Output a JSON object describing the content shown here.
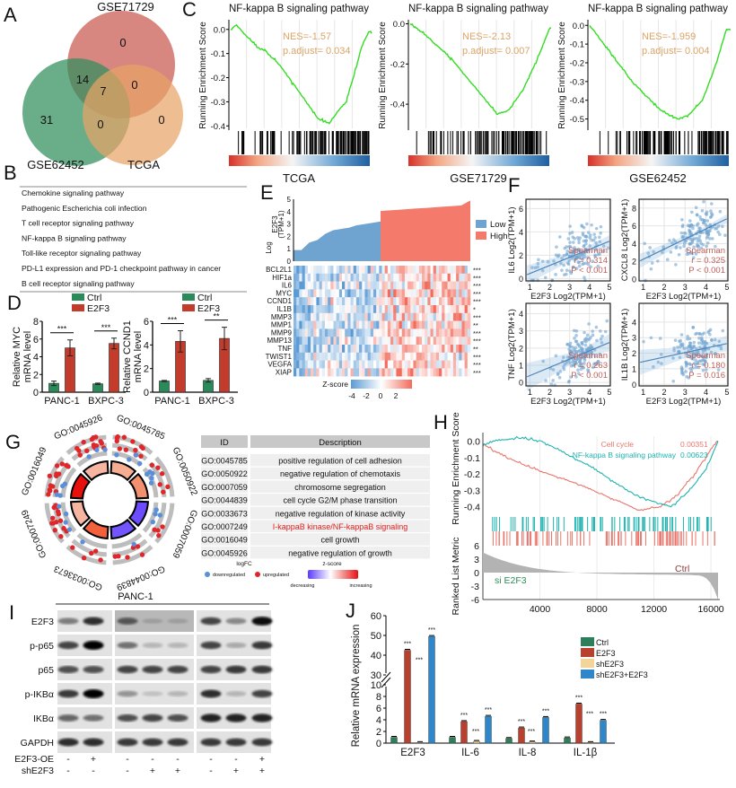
{
  "panel_labels": [
    "A",
    "B",
    "C",
    "D",
    "E",
    "F",
    "G",
    "H",
    "I",
    "J"
  ],
  "chart_data": [
    {
      "panel": "A",
      "type": "venn",
      "sets": [
        {
          "name": "GSE71729",
          "color": "#c9574f"
        },
        {
          "name": "GSE62452",
          "color": "#2f8f5b"
        },
        {
          "name": "TCGA",
          "color": "#e8a466"
        }
      ],
      "regions": [
        0,
        14,
        7,
        0,
        31,
        0,
        0
      ]
    },
    {
      "panel": "B",
      "type": "table",
      "rows": [
        "Chemokine signaling pathway",
        "Pathogenic Escherichia coli infection",
        "T cell receptor signaling pathway",
        "NF-kappa B signaling pathway",
        "Toll-like receptor signaling pathway",
        "PD-L1 expression and PD-1 checkpoint pathway in cancer",
        "B cell receptor signaling pathway"
      ]
    },
    {
      "panel": "C",
      "type": "line",
      "ylabel": "Running Enrichment Score",
      "line_color": "#33dd22",
      "plots": [
        {
          "title": "NF-kappa B signaling pathway",
          "dataset": "TCGA",
          "nes": "NES=-1.57",
          "padj": "p.adjust= 0.034",
          "ylim": [
            -0.41,
            0.04
          ],
          "yticks": [
            "0.0",
            "-0.1",
            "-0.2",
            "-0.3",
            "-0.4"
          ],
          "ytick_values": [
            0,
            -0.1,
            -0.2,
            -0.3,
            -0.4
          ],
          "es": [
            [
              0,
              0
            ],
            [
              0.04,
              0.02
            ],
            [
              0.1,
              -0.02
            ],
            [
              0.2,
              -0.08
            ],
            [
              0.25,
              -0.09
            ],
            [
              0.35,
              -0.15
            ],
            [
              0.5,
              -0.27
            ],
            [
              0.62,
              -0.37
            ],
            [
              0.7,
              -0.39
            ],
            [
              0.76,
              -0.34
            ],
            [
              0.82,
              -0.3
            ],
            [
              0.88,
              -0.18
            ],
            [
              0.93,
              -0.07
            ],
            [
              0.98,
              -0.01
            ]
          ]
        },
        {
          "title": "NF-kappa B signaling pathway",
          "dataset": "GSE71729",
          "nes": "NES=-2.13",
          "padj": "p.adjust= 0.007",
          "ylim": [
            -0.52,
            0.02
          ],
          "yticks": [
            "0.0",
            "-0.2",
            "-0.4"
          ],
          "ytick_values": [
            0,
            -0.2,
            -0.4
          ],
          "es": [
            [
              0,
              0
            ],
            [
              0.1,
              -0.05
            ],
            [
              0.3,
              -0.18
            ],
            [
              0.5,
              -0.35
            ],
            [
              0.62,
              -0.45
            ],
            [
              0.7,
              -0.43
            ],
            [
              0.8,
              -0.33
            ],
            [
              0.9,
              -0.18
            ],
            [
              0.99,
              -0.02
            ]
          ]
        },
        {
          "title": "NF-kappa B signaling pathway",
          "dataset": "GSE62452",
          "nes": "NES=-1.959",
          "padj": "p.adjust= 0.004",
          "ylim": [
            -0.55,
            0.03
          ],
          "yticks": [
            "0.0",
            "-0.1",
            "-0.2",
            "-0.3",
            "-0.4",
            "-0.5"
          ],
          "ytick_values": [
            0,
            -0.1,
            -0.2,
            -0.3,
            -0.4,
            -0.5
          ],
          "es": [
            [
              0,
              0
            ],
            [
              0.1,
              -0.1
            ],
            [
              0.3,
              -0.3
            ],
            [
              0.5,
              -0.45
            ],
            [
              0.62,
              -0.5
            ],
            [
              0.7,
              -0.48
            ],
            [
              0.8,
              -0.4
            ],
            [
              0.9,
              -0.2
            ],
            [
              0.97,
              -0.02
            ]
          ]
        }
      ]
    },
    {
      "panel": "D",
      "type": "bar",
      "legend": [
        "Ctrl",
        "E2F3"
      ],
      "colors": [
        "#2a8a5a",
        "#c23b2b"
      ],
      "charts": [
        {
          "ylabel": [
            "Relative MYC",
            "mRNA level"
          ],
          "categories": [
            "PANC-1",
            "BXPC-3"
          ],
          "ylim": [
            0,
            8
          ],
          "yticks": [
            0,
            2,
            4,
            6,
            8
          ],
          "series": [
            {
              "name": "Ctrl",
              "values": [
                1.0,
                0.95
              ],
              "errors": [
                0.25,
                0.08
              ]
            },
            {
              "name": "E2F3",
              "values": [
                5.0,
                5.5
              ],
              "errors": [
                0.9,
                0.6
              ]
            }
          ],
          "significance": [
            "***",
            "***"
          ]
        },
        {
          "ylabel": [
            "Relative CCND1",
            "mRNA level"
          ],
          "categories": [
            "PANC-1",
            "BXPC-3"
          ],
          "ylim": [
            0,
            6
          ],
          "yticks": [
            0,
            2,
            4,
            6
          ],
          "series": [
            {
              "name": "Ctrl",
              "values": [
                0.95,
                1.0
              ],
              "errors": [
                0.05,
                0.15
              ]
            },
            {
              "name": "E2F3",
              "values": [
                4.3,
                4.55
              ],
              "errors": [
                0.9,
                0.95
              ]
            }
          ],
          "significance": [
            "***",
            "**"
          ]
        }
      ]
    },
    {
      "panel": "E",
      "type": "heatmap",
      "top_ylabel": [
        "Log",
        "E2F3",
        "(TPM+1)"
      ],
      "top_yticks": [
        0,
        1,
        2,
        3,
        4,
        5
      ],
      "groups": [
        {
          "name": "Low",
          "color": "#6fa3d0",
          "profile": [
            0.9,
            0.9,
            1.5,
            1.7,
            2.2,
            2.5,
            2.6,
            2.7,
            2.9,
            3.0,
            3.1,
            3.2
          ]
        },
        {
          "name": "High",
          "color": "#f47a6c",
          "profile": [
            4.05,
            4.1,
            4.15,
            4.2,
            4.25,
            4.3,
            4.35,
            4.4,
            4.45,
            4.5,
            4.9
          ]
        }
      ],
      "genes": [
        "BCL2L1",
        "HIF1a",
        "IL6",
        "MYC",
        "CCND1",
        "IL1B",
        "MMP3",
        "MMP1",
        "MMP9",
        "MMP13",
        "TNF",
        "TWIST1",
        "VEGFA",
        "XIAP"
      ],
      "significance": [
        "***",
        "***",
        "***",
        "***",
        "***",
        "*",
        "***",
        "**",
        "***",
        "***",
        "**",
        "***",
        "***",
        "***"
      ],
      "colorbar": {
        "title": "Z-score",
        "ticks": [
          "-4",
          "-2",
          "0",
          "2"
        ],
        "low": "#5b9bd5",
        "high": "#f26b5b"
      }
    },
    {
      "panel": "F",
      "type": "scatter",
      "xlabel": "E2F3 Log2(TPM+1)",
      "xlim": [
        0.8,
        5.05
      ],
      "xticks": [
        "1",
        "2",
        "3",
        "4",
        "5"
      ],
      "plots": [
        {
          "ylabel": "IL6  Log2(TPM+1)",
          "ylim": [
            -0.2,
            6.8
          ],
          "yticks": [
            0,
            2,
            4,
            6
          ],
          "fit": [
            -0.25,
            0.69
          ],
          "method": "Spearman",
          "r": "r = 0.314",
          "p": "P < 0.001"
        },
        {
          "ylabel": "CXCL8 Log2(TPM+1)",
          "ylim": [
            -0.2,
            9
          ],
          "yticks": [
            0,
            2,
            4,
            6,
            8
          ],
          "fit": [
            1.1,
            1.14
          ],
          "method": "Spearman",
          "r": "r = 0.325",
          "p": "P < 0.001"
        },
        {
          "ylabel": "TNF  Log2(TPM+1)",
          "ylim": [
            -0.2,
            4.6
          ],
          "yticks": [
            0,
            1,
            2,
            3,
            4
          ],
          "fit": [
            -0.08,
            0.48
          ],
          "method": "Spearman",
          "r": "r = 0.263",
          "p": "P < 0.001"
        },
        {
          "ylabel": "IL1B  Log2(TPM+1)",
          "ylim": [
            -0.1,
            5.2
          ],
          "yticks": [
            0,
            1,
            2,
            3,
            4
          ],
          "fit": [
            1.17,
            0.29
          ],
          "method": "Spearman",
          "r": "r = 0.180",
          "p": "P = 0.016"
        }
      ]
    },
    {
      "panel": "G",
      "type": "circle",
      "terms": [
        {
          "id": "GO:0045785",
          "description": "positive regulation of cell adhesion",
          "zcolor": "#f6ad92",
          "up": 12,
          "down": 4
        },
        {
          "id": "GO:0050922",
          "description": "negative regulation of chemotaxis",
          "zcolor": "#f2906f",
          "up": 6,
          "down": 5
        },
        {
          "id": "GO:0007059",
          "description": "chromosome segregation",
          "zcolor": "#6d4cff",
          "up": 4,
          "down": 4
        },
        {
          "id": "GO:0044839",
          "description": "cell cycle G2/M phase transition",
          "zcolor": "#7355ff",
          "up": 6,
          "down": 1
        },
        {
          "id": "GO:0033673",
          "description": "negative regulation of kinase activity",
          "zcolor": "#f2603c",
          "up": 5,
          "down": 1
        },
        {
          "id": "GO:0007249",
          "description": "I-kappaB kinase/NF-kappaB signaling",
          "zcolor": "#f6b5a0",
          "up": 14,
          "down": 4,
          "highlight": "#e02020"
        },
        {
          "id": "GO:0016049",
          "description": "cell growth",
          "zcolor": "#e8100a",
          "up": 14,
          "down": 4
        },
        {
          "id": "GO:0045926",
          "description": "negative regulation of growth",
          "zcolor": "#f6b5a0",
          "up": 15,
          "down": 3
        }
      ],
      "table_headers": [
        "ID",
        "Description"
      ],
      "legend": {
        "logfc_title": "logFC",
        "down": "downregulated",
        "up": "upregulated",
        "down_color": "#5b8fd9",
        "up_color": "#e0262a",
        "z_title": "z-score",
        "z_low": "decreasing",
        "z_high": "increasing"
      }
    },
    {
      "panel": "H",
      "type": "line",
      "ylabel": "Running Enrichment Score",
      "ylabel2": "Ranked List Metric",
      "ylim": [
        -0.44,
        0.03
      ],
      "yticks": [
        "0.0",
        "-0.1",
        "-0.2",
        "-0.3",
        "-0.4"
      ],
      "ytick_values": [
        0,
        -0.1,
        -0.2,
        -0.3,
        -0.4
      ],
      "metric_ticks": [
        6,
        3,
        0,
        -3,
        -6
      ],
      "xlim": [
        0,
        16500
      ],
      "xticks": [
        4000,
        8000,
        12000,
        16000
      ],
      "series": [
        {
          "name": "Cell cycle",
          "pvalue": "0.00351",
          "color": "#e8766c",
          "es": [
            [
              0,
              -0.02
            ],
            [
              0.1,
              -0.1
            ],
            [
              0.2,
              -0.16
            ],
            [
              0.4,
              -0.26
            ],
            [
              0.6,
              -0.38
            ],
            [
              0.66,
              -0.42
            ],
            [
              0.75,
              -0.4
            ],
            [
              0.82,
              -0.34
            ],
            [
              0.9,
              -0.2
            ],
            [
              0.97,
              -0.05
            ],
            [
              1,
              0.0
            ]
          ]
        },
        {
          "name": "NF-kappa B signaling pathway",
          "pvalue": "0.00623",
          "color": "#1fb3b0",
          "es": [
            [
              0,
              -0.03
            ],
            [
              0.05,
              0.0
            ],
            [
              0.15,
              0.02
            ],
            [
              0.25,
              0.0
            ],
            [
              0.45,
              -0.15
            ],
            [
              0.65,
              -0.33
            ],
            [
              0.75,
              -0.38
            ],
            [
              0.8,
              -0.4
            ],
            [
              0.88,
              -0.3
            ],
            [
              0.95,
              -0.17
            ],
            [
              1,
              0.0
            ]
          ]
        }
      ],
      "left_label": "si E2F3",
      "right_label": "Ctrl",
      "left_color": "#2e8b57",
      "right_color": "#8b3a3a"
    },
    {
      "panel": "I",
      "type": "blot",
      "title": "PANC-1",
      "rows": [
        {
          "name": "E2F3",
          "intensity": [
            0.45,
            0.8,
            0.55,
            0.15,
            0.15,
            0.7,
            0.4,
            0.95
          ]
        },
        {
          "name": "p-p65",
          "intensity": [
            0.7,
            1,
            0.5,
            0.2,
            0.2,
            0.7,
            0.25,
            0.75
          ]
        },
        {
          "name": "p65",
          "intensity": [
            0.65,
            0.65,
            0.7,
            0.7,
            0.7,
            0.7,
            0.75,
            0.75
          ]
        },
        {
          "name": "p-IKBα",
          "intensity": [
            0.75,
            1,
            0.35,
            0.15,
            0.2,
            0.8,
            0.2,
            0.7
          ]
        },
        {
          "name": "IKBα",
          "intensity": [
            0.55,
            0.5,
            0.65,
            0.7,
            0.65,
            0.85,
            0.85,
            0.85
          ]
        },
        {
          "name": "GAPDH",
          "intensity": [
            0.8,
            0.8,
            0.75,
            0.75,
            0.75,
            0.75,
            0.75,
            0.75
          ]
        }
      ],
      "conditions": [
        {
          "name": "E2F3-OE",
          "values": [
            "-",
            "+",
            "-",
            "-",
            "-",
            "-",
            "-",
            "+"
          ]
        },
        {
          "name": "shE2F3",
          "values": [
            "-",
            "-",
            "-",
            "+",
            "+",
            "-",
            "+",
            "+"
          ]
        }
      ]
    },
    {
      "panel": "J",
      "type": "bar",
      "ylabel": "Relative mRNA expression",
      "yticks_lower": [
        0,
        2,
        4,
        6,
        8,
        10
      ],
      "yticks_upper": [
        30,
        40,
        50,
        60
      ],
      "categories": [
        "E2F3",
        "IL-6",
        "IL-8",
        "IL-1β"
      ],
      "series": [
        {
          "name": "Ctrl",
          "color": "#2e7d5b",
          "values": [
            1,
            1,
            0.8,
            0.9
          ],
          "sig": [
            "",
            "",
            "",
            ""
          ]
        },
        {
          "name": "E2F3",
          "color": "#b8402f",
          "values": [
            42.5,
            3.7,
            2.6,
            6.7
          ],
          "sig": [
            "***",
            "***",
            "***",
            "***"
          ]
        },
        {
          "name": "shE2F3",
          "color": "#f5d49a",
          "values": [
            0.1,
            0.3,
            0.2,
            0.1
          ],
          "sig": [
            "***",
            "***",
            "***",
            "***"
          ]
        },
        {
          "name": "shE2F3+E2F3",
          "color": "#2f86c8",
          "values": [
            49.5,
            4.6,
            4.4,
            3.9
          ],
          "sig": [
            "***",
            "***",
            "***",
            "***"
          ]
        }
      ]
    }
  ]
}
